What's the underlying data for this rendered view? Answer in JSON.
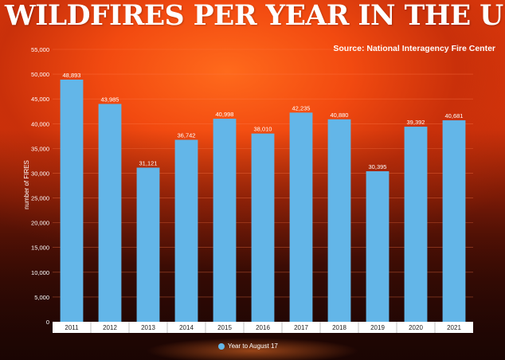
{
  "title": "WILDFIRES PER YEAR IN THE US",
  "source": "Source: National Interagency Fire Center",
  "colors": {
    "bar": "#63b6e8",
    "text": "#ffffff",
    "grid": "#ff7a4a"
  },
  "chart_data": {
    "type": "bar",
    "categories": [
      "2011",
      "2012",
      "2013",
      "2014",
      "2015",
      "2016",
      "2017",
      "2018",
      "2019",
      "2020",
      "2021"
    ],
    "series": [
      {
        "name": "Year to August 17",
        "values": [
          48893,
          43985,
          31121,
          36742,
          40998,
          38010,
          42235,
          40880,
          30395,
          39392,
          40681
        ]
      }
    ],
    "value_labels": [
      "48,893",
      "43,985",
      "31,121",
      "36,742",
      "40,998",
      "38,010",
      "42,235",
      "40,880",
      "30,395",
      "39,392",
      "40,681"
    ],
    "ylabel": "number of FIRES",
    "xlabel": "",
    "ylim": [
      0,
      55000
    ],
    "yticks": [
      0,
      5000,
      10000,
      15000,
      20000,
      25000,
      30000,
      35000,
      40000,
      45000,
      50000,
      55000
    ],
    "ytick_labels": [
      "0",
      "5,000",
      "10,000",
      "15,000",
      "20,000",
      "25,000",
      "30,000",
      "35,000",
      "40,000",
      "45,000",
      "50,000",
      "55,000"
    ],
    "grid": true,
    "legend_position": "bottom-center"
  }
}
